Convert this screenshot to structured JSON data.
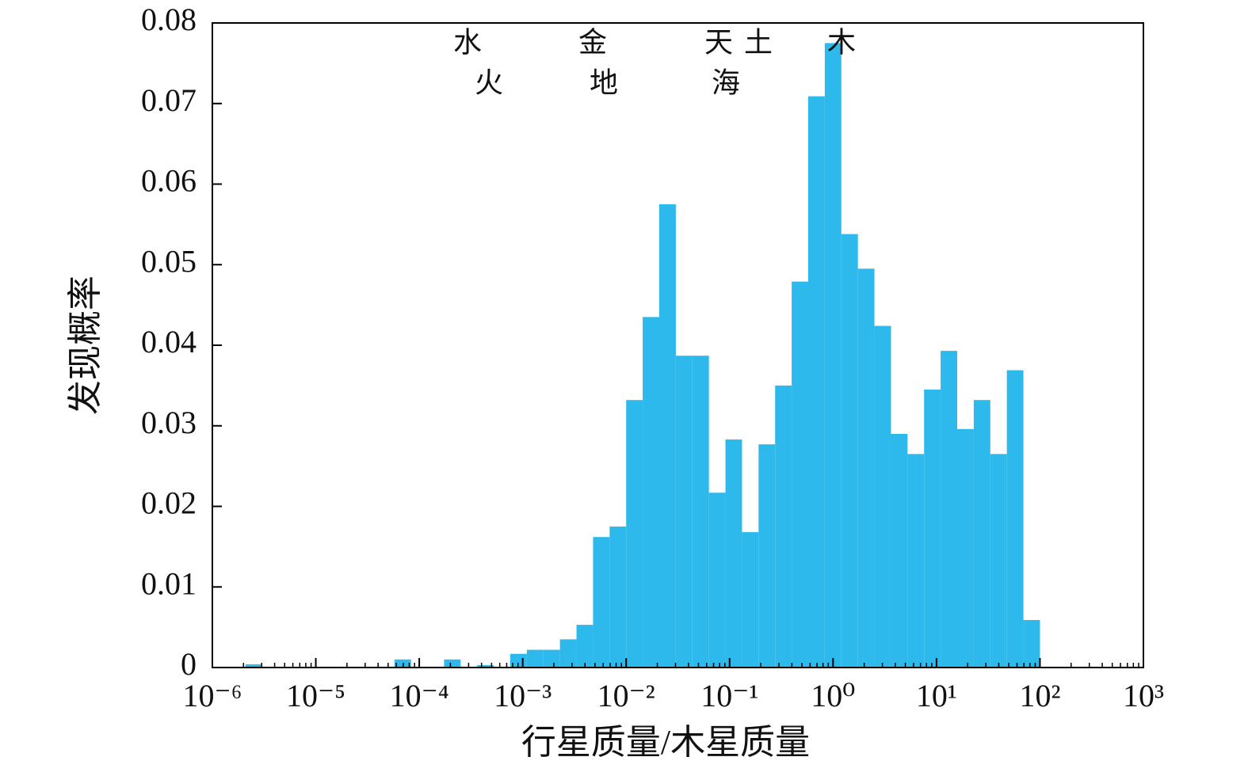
{
  "chart_data": {
    "type": "histogram",
    "x_label": "行星质量/木星质量",
    "y_label": "发现概率",
    "annotations": [
      "水",
      "火",
      "金",
      "地",
      "天",
      "土",
      "海",
      "木"
    ],
    "color": "#2db9eb",
    "x_log": true,
    "bins": [
      1e-06,
      1.445e-06,
      2.089e-06,
      3.02e-06,
      4.365e-06,
      6.31e-06,
      9.12e-06,
      1.318e-05,
      1.905e-05,
      2.754e-05,
      3.981e-05,
      5.754e-05,
      8.318e-05,
      0.0001202,
      0.0001738,
      0.0002512,
      0.0003631,
      0.0005248,
      0.0007586,
      0.001096,
      0.001585,
      0.002291,
      0.003311,
      0.004786,
      0.006918,
      0.01,
      0.01445,
      0.02089,
      0.0302,
      0.04365,
      0.0631,
      0.0912,
      0.1318,
      0.1905,
      0.2754,
      0.3981,
      0.5754,
      0.8318,
      1.202,
      1.738,
      2.512,
      3.631,
      5.248,
      7.586,
      10.96,
      15.85,
      22.91,
      33.11,
      47.86,
      69.18,
      100
    ],
    "values": [
      0,
      0,
      0.0004,
      0,
      0,
      0,
      0,
      0,
      0,
      0,
      0,
      0.001,
      0,
      0,
      0.001,
      0,
      0.0003,
      0,
      0.0017,
      0.0022,
      0.0022,
      0.0035,
      0.0053,
      0.0162,
      0.0175,
      0.0332,
      0.0435,
      0.0575,
      0.0387,
      0.0387,
      0.0217,
      0.0283,
      0.0168,
      0.0277,
      0.035,
      0.0479,
      0.0709,
      0.0775,
      0.0538,
      0.0495,
      0.0424,
      0.029,
      0.0265,
      0.0345,
      0.0393,
      0.0296,
      0.0332,
      0.0265,
      0.0369,
      0.0059
    ],
    "xlim": [
      1e-06,
      1000
    ],
    "xticks": [
      {
        "value": 1e-06,
        "label": "10⁻⁶"
      },
      {
        "value": 1e-05,
        "label": "10⁻⁵"
      },
      {
        "value": 0.0001,
        "label": "10⁻⁴"
      },
      {
        "value": 0.001,
        "label": "10⁻³"
      },
      {
        "value": 0.01,
        "label": "10⁻²"
      },
      {
        "value": 0.1,
        "label": "10⁻¹"
      },
      {
        "value": 1,
        "label": "10⁰"
      },
      {
        "value": 10,
        "label": "10¹"
      },
      {
        "value": 100,
        "label": "10²"
      },
      {
        "value": 1000,
        "label": "10³"
      }
    ],
    "ylim": [
      0,
      0.08
    ],
    "yticks": [
      0,
      0.01,
      0.02,
      0.03,
      0.04,
      0.05,
      0.06,
      0.07,
      0.08
    ]
  }
}
